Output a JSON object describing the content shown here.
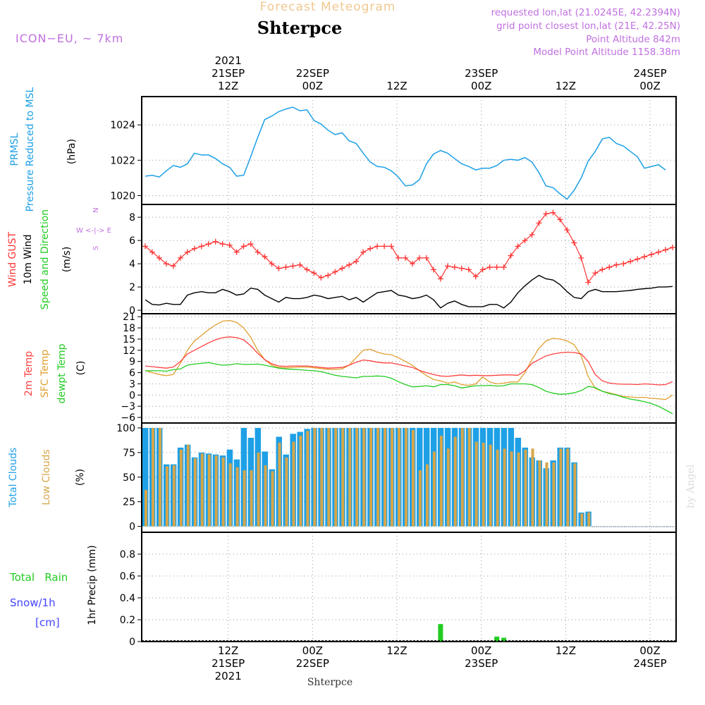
{
  "header": {
    "title": "Forecast Meteogram",
    "location": "Shterpce",
    "model": "ICON−EU, ~ 7km",
    "requested": "requested lon,lat (21.0245E, 42.2394N)",
    "gridpoint": "grid point closest lon,lat (21E, 42.25N)",
    "point_altitude": "Point Altitude 842m",
    "model_altitude": "Model Point Altitude 1158.38m",
    "credit": "by Angel",
    "footer_location": "Shterpce"
  },
  "colors": {
    "pressure": "#1ea0e6",
    "wind_speed": "#000000",
    "wind_gust": "#ff3333",
    "temp_2m": "#ff4040",
    "sfc_temp": "#e0a030",
    "dewpoint": "#22cc22",
    "total_clouds": "#1ea0e6",
    "low_clouds": "#d6a64a",
    "rain": "#22cc22",
    "snow": "#4444ff",
    "model_text": "#c070e0",
    "title_text": "#f0c890"
  },
  "time_axis": {
    "top_labels": [
      {
        "x": 12,
        "lines": [
          "2021",
          "21SEP",
          "12Z"
        ]
      },
      {
        "x": 24,
        "lines": [
          "22SEP",
          "00Z"
        ]
      },
      {
        "x": 36,
        "lines": [
          "12Z"
        ]
      },
      {
        "x": 48,
        "lines": [
          "23SEP",
          "00Z"
        ]
      },
      {
        "x": 60,
        "lines": [
          "12Z"
        ]
      },
      {
        "x": 72,
        "lines": [
          "24SEP",
          "00Z"
        ]
      }
    ],
    "bottom_labels": [
      {
        "x": 12,
        "lines": [
          "12Z",
          "21SEP",
          "2021"
        ]
      },
      {
        "x": 24,
        "lines": [
          "00Z",
          "22SEP"
        ]
      },
      {
        "x": 36,
        "lines": [
          "12Z"
        ]
      },
      {
        "x": 48,
        "lines": [
          "00Z",
          "23SEP"
        ]
      },
      {
        "x": 60,
        "lines": [
          "12Z"
        ]
      },
      {
        "x": 72,
        "lines": [
          "00Z",
          "24SEP"
        ]
      }
    ]
  },
  "chart_data": [
    {
      "type": "line",
      "panel": "pressure",
      "ylabel_lines": [
        "PRMSL",
        "Pressure Reduced to MSL"
      ],
      "unit": "(hPa)",
      "ylim": [
        1019.5,
        1025.6
      ],
      "yticks": [
        1020,
        1022,
        1024
      ],
      "x_start_hours": 0,
      "x_step_hours": 1,
      "series": [
        {
          "values": [
            1021.1,
            1021.15,
            1021.05,
            1021.4,
            1021.7,
            1021.6,
            1021.8,
            1022.4,
            1022.3,
            1022.3,
            1022.1,
            1021.8,
            1021.6,
            1021.1,
            1021.15,
            1022.2,
            1023.3,
            1024.3,
            1024.5,
            1024.75,
            1024.9,
            1025.0,
            1024.8,
            1024.85,
            1024.25,
            1024.05,
            1023.7,
            1023.45,
            1023.55,
            1023.1,
            1022.95,
            1022.4,
            1021.9,
            1021.65,
            1021.6,
            1021.4,
            1021.05,
            1020.55,
            1020.6,
            1020.9,
            1021.8,
            1022.35,
            1022.55,
            1022.4,
            1022.1,
            1021.8,
            1021.65,
            1021.45,
            1021.55,
            1021.55,
            1021.7,
            1022.0,
            1022.05,
            1022.0,
            1022.15,
            1021.9,
            1021.3,
            1020.55,
            1020.45,
            1020.1,
            1019.8,
            1020.3,
            1021.0,
            1021.95,
            1022.5,
            1023.2,
            1023.3,
            1022.95,
            1022.8,
            1022.5,
            1022.2,
            1021.55,
            1021.65,
            1021.75,
            1021.45
          ]
        }
      ]
    },
    {
      "type": "line",
      "panel": "wind",
      "ylabel_lines": [
        "Wind GUST",
        "10m Wind",
        "Speed and Direction"
      ],
      "unit": "(m/s)",
      "compass": [
        "N",
        "W <-|-> E",
        "S"
      ],
      "ylim": [
        -0.3,
        9.1
      ],
      "yticks": [
        0,
        2,
        4,
        6,
        8
      ],
      "x_start_hours": 0,
      "x_step_hours": 1,
      "series": [
        {
          "name": "Wind GUST",
          "values": [
            5.5,
            5.0,
            4.5,
            4.0,
            3.8,
            4.5,
            5.0,
            5.3,
            5.5,
            5.7,
            5.9,
            5.7,
            5.6,
            5.0,
            5.5,
            5.7,
            5.0,
            4.6,
            4.0,
            3.6,
            3.7,
            3.8,
            3.9,
            3.5,
            3.2,
            2.8,
            3.0,
            3.3,
            3.6,
            3.9,
            4.2,
            5.0,
            5.3,
            5.5,
            5.5,
            5.5,
            4.5,
            4.5,
            4.0,
            4.5,
            4.5,
            3.5,
            2.7,
            3.8,
            3.7,
            3.6,
            3.5,
            2.9,
            3.5,
            3.7,
            3.7,
            3.7,
            4.7,
            5.5,
            6.0,
            6.5,
            7.5,
            8.3,
            8.4,
            7.8,
            6.9,
            5.8,
            4.5,
            2.4,
            3.2,
            3.5,
            3.7,
            3.9,
            4.0,
            4.2,
            4.4,
            4.6,
            4.8,
            5.0,
            5.2,
            5.4
          ]
        },
        {
          "name": "10m Wind",
          "values": [
            0.9,
            0.5,
            0.45,
            0.6,
            0.5,
            0.5,
            1.3,
            1.5,
            1.6,
            1.5,
            1.5,
            1.8,
            1.6,
            1.3,
            1.4,
            1.9,
            1.8,
            1.3,
            1.0,
            0.7,
            1.1,
            1.0,
            1.0,
            1.1,
            1.3,
            1.2,
            1.0,
            1.1,
            1.2,
            0.9,
            1.1,
            0.7,
            1.1,
            1.5,
            1.6,
            1.7,
            1.3,
            1.2,
            1.0,
            1.1,
            1.3,
            0.9,
            0.2,
            0.6,
            0.8,
            0.5,
            0.3,
            0.3,
            0.3,
            0.5,
            0.5,
            0.2,
            0.7,
            1.5,
            2.1,
            2.6,
            3.0,
            2.7,
            2.6,
            2.2,
            1.6,
            1.1,
            1.0,
            1.6,
            1.8,
            1.6,
            1.6,
            1.6,
            1.65,
            1.7,
            1.8,
            1.85,
            1.9,
            2.0,
            2.0,
            2.05
          ]
        }
      ]
    },
    {
      "type": "line",
      "panel": "temperature",
      "ylabel_lines": [
        "2m Temp",
        "SFC Temp",
        "dewpt Temp"
      ],
      "unit": "(C)",
      "ylim": [
        -7.5,
        21.8
      ],
      "yticks": [
        -6,
        -3,
        0,
        3,
        6,
        9,
        12,
        15,
        18,
        21
      ],
      "x_start_hours": 0,
      "x_step_hours": 1,
      "series": [
        {
          "name": "2m Temp",
          "values": [
            7.8,
            7.6,
            7.4,
            7.2,
            7.5,
            9.0,
            11.0,
            12.0,
            13.0,
            14.0,
            14.8,
            15.4,
            15.6,
            15.4,
            14.8,
            13.2,
            11.2,
            9.5,
            8.4,
            7.8,
            7.7,
            7.8,
            7.8,
            7.8,
            7.6,
            7.4,
            7.2,
            7.3,
            7.4,
            8.0,
            8.8,
            9.4,
            9.2,
            8.8,
            8.6,
            8.6,
            8.2,
            7.8,
            7.4,
            6.6,
            6.0,
            5.5,
            5.1,
            5.0,
            5.2,
            5.4,
            5.2,
            5.3,
            5.2,
            5.2,
            5.3,
            5.4,
            5.4,
            5.3,
            6.5,
            8.5,
            9.5,
            10.5,
            11.0,
            11.3,
            11.5,
            11.4,
            11.0,
            9.0,
            5.5,
            3.8,
            3.2,
            3.0,
            2.9,
            2.9,
            2.8,
            3.0,
            2.9,
            2.7,
            2.8,
            3.6
          ]
        },
        {
          "name": "SFC Temp",
          "values": [
            6.6,
            6.0,
            5.5,
            5.2,
            5.5,
            8.5,
            12.0,
            14.5,
            16.0,
            17.5,
            18.8,
            19.8,
            20.0,
            19.5,
            18.0,
            15.5,
            12.0,
            9.5,
            8.0,
            7.4,
            7.3,
            7.4,
            7.5,
            7.5,
            7.3,
            7.1,
            6.9,
            6.9,
            7.0,
            8.0,
            10.0,
            12.0,
            12.3,
            11.5,
            11.0,
            10.8,
            10.0,
            9.0,
            8.0,
            6.5,
            5.2,
            4.2,
            3.8,
            3.2,
            3.5,
            2.8,
            2.6,
            3.0,
            4.8,
            3.5,
            3.0,
            3.2,
            3.5,
            3.5,
            6.0,
            9.5,
            12.5,
            14.5,
            15.2,
            15.0,
            14.5,
            13.5,
            10.5,
            5.0,
            1.8,
            1.0,
            0.6,
            0.1,
            -0.4,
            -0.5,
            -0.7,
            -0.6,
            -0.9,
            -1.0,
            -1.2,
            0.0
          ]
        },
        {
          "name": "dewpt Temp",
          "values": [
            6.5,
            6.5,
            6.5,
            6.4,
            6.8,
            7.0,
            8.0,
            8.3,
            8.5,
            8.7,
            8.3,
            8.0,
            8.1,
            8.4,
            8.2,
            8.2,
            8.3,
            8.0,
            7.6,
            7.2,
            7.0,
            6.9,
            6.8,
            6.6,
            6.5,
            6.3,
            5.8,
            5.3,
            5.0,
            4.8,
            4.6,
            5.0,
            5.0,
            5.1,
            5.0,
            4.5,
            3.6,
            2.8,
            2.2,
            2.3,
            2.5,
            2.2,
            2.8,
            2.8,
            2.5,
            1.9,
            2.2,
            2.5,
            2.5,
            2.6,
            2.4,
            2.5,
            3.0,
            3.0,
            3.0,
            2.8,
            2.0,
            1.0,
            0.5,
            0.2,
            0.3,
            0.6,
            1.2,
            2.3,
            2.0,
            1.0,
            0.4,
            0.0,
            -0.6,
            -1.1,
            -1.4,
            -1.8,
            -2.3,
            -3.0,
            -4.0,
            -5.0
          ]
        }
      ]
    },
    {
      "type": "bar",
      "panel": "clouds",
      "ylabel_lines": [
        "Total Clouds",
        "Low Clouds"
      ],
      "unit": "(%)",
      "ylim": [
        -6,
        105
      ],
      "yticks": [
        0,
        25,
        50,
        75,
        100
      ],
      "x_start_hours": 0,
      "x_step_hours": 1,
      "series": [
        {
          "name": "Total Clouds",
          "values": [
            100,
            100,
            100,
            63,
            63,
            80,
            83,
            70,
            75,
            74,
            73,
            72,
            78,
            68,
            100,
            90,
            100,
            76,
            58,
            91,
            73,
            94,
            96,
            99,
            100,
            100,
            100,
            100,
            100,
            100,
            100,
            100,
            100,
            100,
            100,
            100,
            100,
            100,
            100,
            100,
            100,
            100,
            100,
            100,
            100,
            100,
            100,
            100,
            100,
            100,
            100,
            100,
            100,
            90,
            80,
            70,
            67,
            59,
            67,
            80,
            80,
            65,
            14,
            15,
            0,
            0,
            0,
            0,
            0,
            0,
            0,
            0,
            0,
            0,
            0,
            0
          ]
        },
        {
          "name": "Low Clouds",
          "values": [
            37,
            100,
            100,
            61,
            62,
            78,
            83,
            69,
            74,
            73,
            72,
            70,
            64,
            60,
            57,
            57,
            75,
            62,
            56,
            85,
            70,
            86,
            92,
            97,
            100,
            100,
            100,
            100,
            100,
            100,
            100,
            100,
            100,
            100,
            100,
            100,
            100,
            100,
            98,
            57,
            63,
            76,
            92,
            79,
            91,
            100,
            100,
            86,
            85,
            83,
            78,
            79,
            76,
            75,
            78,
            79,
            67,
            65,
            65,
            79,
            79,
            64,
            13,
            14,
            0,
            0,
            0,
            0,
            0,
            0,
            0,
            0,
            0,
            0,
            0,
            0
          ]
        }
      ]
    },
    {
      "type": "bar",
      "panel": "precip",
      "ylabel_lines": [
        "Total   Rain",
        "Snow/1h",
        "[cm]"
      ],
      "axis_title": "1hr Precip (mm)",
      "ylim": [
        0,
        1.0
      ],
      "yticks": [
        0,
        0.2,
        0.4,
        0.6,
        0.8
      ],
      "x_start_hours": 0,
      "x_step_hours": 1,
      "series": [
        {
          "name": "Total Rain",
          "values": [
            0,
            0,
            0,
            0,
            0,
            0,
            0,
            0,
            0,
            0,
            0,
            0,
            0,
            0,
            0,
            0,
            0,
            0,
            0,
            0,
            0,
            0,
            0,
            0,
            0,
            0,
            0,
            0,
            0,
            0,
            0,
            0,
            0,
            0,
            0,
            0,
            0,
            0,
            0,
            0,
            0,
            0,
            0.16,
            0,
            0,
            0,
            0,
            0,
            0,
            0,
            0.045,
            0.035,
            0,
            0,
            0,
            0,
            0,
            0,
            0,
            0,
            0,
            0,
            0,
            0,
            0,
            0,
            0,
            0,
            0,
            0,
            0,
            0,
            0,
            0,
            0,
            0
          ]
        }
      ]
    }
  ]
}
